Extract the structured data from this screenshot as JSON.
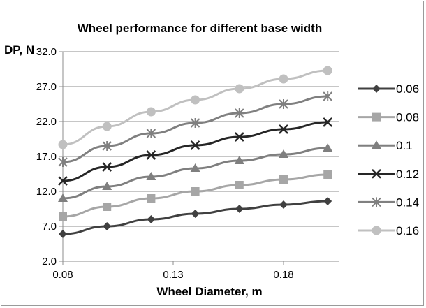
{
  "chart_data": {
    "type": "line",
    "title": "Wheel performance for different base width",
    "xlabel": "Wheel Diameter, m",
    "ylabel": "DP, N",
    "x": [
      0.08,
      0.1,
      0.12,
      0.14,
      0.16,
      0.18,
      0.2
    ],
    "xlim": [
      0.08,
      0.205
    ],
    "ylim": [
      2.0,
      32.0
    ],
    "xticks": [
      "0.08",
      "0.13",
      "0.18"
    ],
    "xtick_values": [
      0.08,
      0.13,
      0.18
    ],
    "yticks": [
      "2.0",
      "7.0",
      "12.0",
      "17.0",
      "22.0",
      "27.0",
      "32.0"
    ],
    "ytick_values": [
      2,
      7,
      12,
      17,
      22,
      27,
      32
    ],
    "grid": "horizontal",
    "legend_position": "right",
    "series": [
      {
        "name": "0.06",
        "color": "#404040",
        "marker": "diamond",
        "values": [
          5.9,
          7.0,
          8.0,
          8.8,
          9.5,
          10.1,
          10.6
        ]
      },
      {
        "name": "0.08",
        "color": "#a6a6a6",
        "marker": "square",
        "values": [
          8.4,
          9.8,
          11.0,
          12.0,
          12.9,
          13.7,
          14.4
        ]
      },
      {
        "name": "0.1",
        "color": "#7f7f7f",
        "marker": "triangle",
        "values": [
          11.0,
          12.7,
          14.1,
          15.3,
          16.4,
          17.3,
          18.2
        ]
      },
      {
        "name": "0.12",
        "color": "#262626",
        "marker": "x",
        "values": [
          13.5,
          15.5,
          17.2,
          18.6,
          19.8,
          20.9,
          21.9
        ]
      },
      {
        "name": "0.14",
        "color": "#808080",
        "marker": "asterisk",
        "values": [
          16.2,
          18.5,
          20.3,
          21.8,
          23.2,
          24.5,
          25.6
        ]
      },
      {
        "name": "0.16",
        "color": "#c0c0c0",
        "marker": "circle",
        "values": [
          18.7,
          21.3,
          23.4,
          25.1,
          26.7,
          28.1,
          29.3
        ]
      }
    ]
  }
}
